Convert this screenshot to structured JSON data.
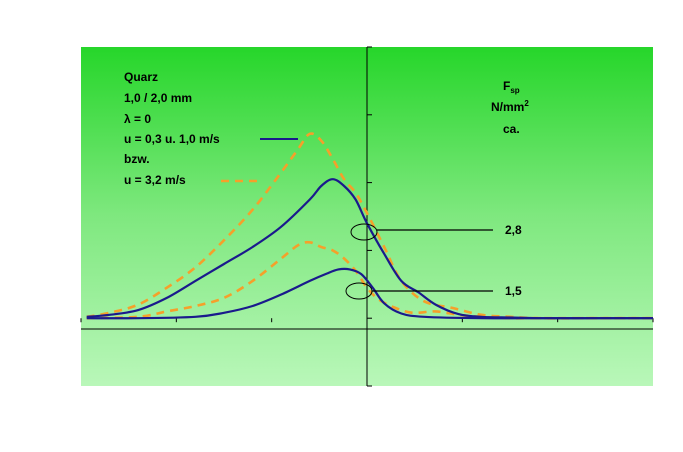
{
  "chart_data": {
    "type": "line",
    "title": "",
    "material": "Quarz",
    "size": "1,0 / 2,0 mm",
    "lambda": "λ = 0",
    "legend": [
      {
        "label": "u = 0,3 u. 1,0 m/s",
        "color": "#1a1a8c",
        "style": "solid"
      },
      {
        "label": "u = 3,2 m/s",
        "color": "#f5a02a",
        "style": "dashed"
      }
    ],
    "bzw": "bzw.",
    "ylabel_main": "F",
    "ylabel_sub": "sp",
    "yunit_base": "N/mm",
    "yunit_sup": "2",
    "yunit_ca": "ca.",
    "xlim": [
      0,
      10
    ],
    "ylim": [
      -1,
      4
    ],
    "annotations": [
      {
        "text": "2,8",
        "x": 5.0,
        "y": 1.72
      },
      {
        "text": "1,5",
        "x": 5.0,
        "y": 0.67
      }
    ],
    "series": [
      {
        "name": "solid-high",
        "style": "solid",
        "x": [
          0.1,
          0.5,
          1.0,
          1.5,
          2.0,
          2.5,
          3.0,
          3.5,
          4.0,
          4.2,
          4.4,
          4.6,
          4.8,
          5.0,
          5.3,
          5.6,
          5.9,
          6.2,
          6.6,
          7.0,
          7.5,
          8.0,
          9.0,
          10.0
        ],
        "y": [
          0.02,
          0.05,
          0.12,
          0.3,
          0.55,
          0.8,
          1.05,
          1.35,
          1.75,
          1.95,
          2.05,
          1.95,
          1.75,
          1.4,
          0.95,
          0.55,
          0.38,
          0.2,
          0.06,
          0.02,
          0.01,
          0.0,
          0.0,
          0.0
        ]
      },
      {
        "name": "solid-low",
        "style": "solid",
        "x": [
          0.1,
          1.0,
          2.0,
          2.5,
          3.0,
          3.5,
          4.0,
          4.3,
          4.5,
          4.7,
          4.9,
          5.1,
          5.3,
          5.6,
          6.0,
          7.0,
          8.0,
          10.0
        ],
        "y": [
          0.0,
          0.0,
          0.02,
          0.08,
          0.18,
          0.35,
          0.55,
          0.66,
          0.72,
          0.72,
          0.65,
          0.45,
          0.22,
          0.07,
          0.02,
          0.0,
          0.0,
          0.0
        ]
      },
      {
        "name": "dash-high",
        "style": "dashed",
        "x": [
          0.1,
          0.5,
          1.0,
          1.5,
          2.0,
          2.5,
          3.0,
          3.5,
          3.8,
          4.0,
          4.2,
          4.4,
          4.6,
          4.8,
          5.0,
          5.3,
          5.6,
          6.0,
          6.5,
          7.0,
          7.5,
          8.0,
          9.0,
          10.0
        ],
        "y": [
          0.02,
          0.08,
          0.2,
          0.45,
          0.75,
          1.15,
          1.6,
          2.15,
          2.5,
          2.72,
          2.62,
          2.35,
          2.05,
          1.85,
          1.55,
          1.05,
          0.55,
          0.25,
          0.15,
          0.05,
          0.02,
          0.0,
          0.0,
          0.0
        ]
      },
      {
        "name": "dash-low",
        "style": "dashed",
        "x": [
          0.1,
          1.0,
          1.5,
          2.0,
          2.5,
          3.0,
          3.5,
          3.8,
          4.0,
          4.2,
          4.4,
          4.6,
          4.8,
          5.0,
          5.2,
          5.5,
          5.8,
          6.2,
          6.6,
          7.0,
          7.5,
          8.0,
          10.0
        ],
        "y": [
          0.0,
          0.02,
          0.1,
          0.18,
          0.3,
          0.55,
          0.88,
          1.08,
          1.12,
          1.05,
          1.0,
          0.88,
          0.7,
          0.45,
          0.28,
          0.15,
          0.08,
          0.1,
          0.05,
          0.02,
          0.0,
          0.0,
          0.0
        ]
      }
    ]
  },
  "colors": {
    "solid": "#1a1a8c",
    "dashed": "#f5a02a",
    "axis": "#000000"
  }
}
